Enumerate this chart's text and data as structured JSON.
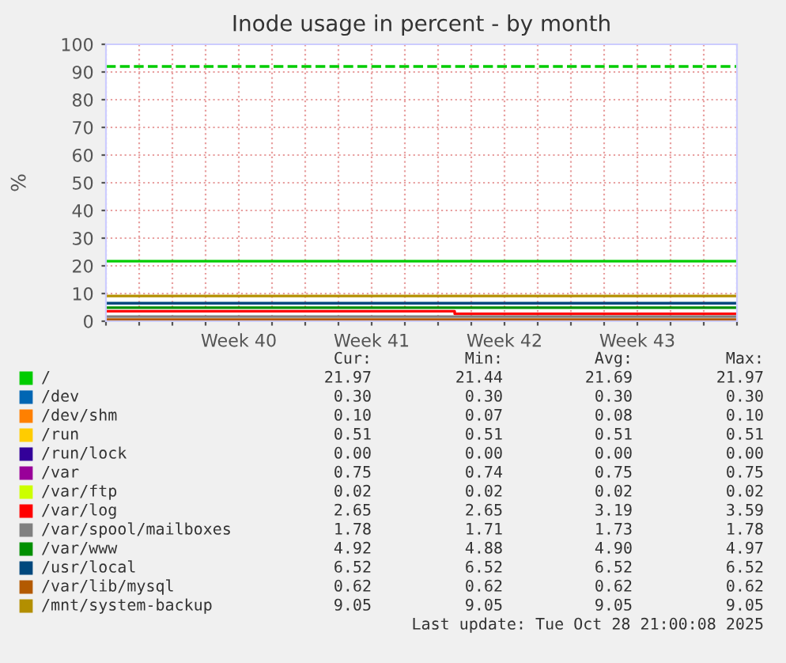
{
  "chart_data": {
    "type": "line",
    "title": "Inode usage in percent - by month",
    "ylabel": "%",
    "categories": [
      null,
      null,
      null,
      null,
      "Week 40",
      null,
      null,
      null,
      "Week 41",
      null,
      null,
      null,
      "Week 42",
      null,
      null,
      null,
      "Week 43",
      null,
      null,
      null
    ],
    "ylim": [
      0,
      100
    ],
    "yticks": [
      0,
      10,
      20,
      30,
      40,
      50,
      60,
      70,
      80,
      90,
      100
    ],
    "grid": true,
    "legend": "bottom",
    "marker": "none",
    "line_style": "solid",
    "ref_lines": [
      {
        "axis": "y",
        "value": 92,
        "color": "#00cc00",
        "line_style": "dashed"
      }
    ],
    "series": [
      {
        "name": "/",
        "color": "#00cc00",
        "values": [
          21.7,
          21.7,
          21.7,
          21.7,
          21.7,
          21.7,
          21.7,
          21.7,
          21.7,
          21.7,
          21.7,
          21.7,
          21.7,
          21.7,
          21.7,
          21.7,
          21.7,
          21.7,
          21.7,
          21.7
        ]
      },
      {
        "name": "/dev",
        "color": "#0066b3",
        "values": [
          null,
          null,
          null,
          null,
          null,
          null,
          null,
          null,
          null,
          null,
          null,
          null,
          null,
          null,
          null,
          null,
          null,
          null,
          null,
          null
        ]
      },
      {
        "name": "/dev/shm",
        "color": "#ff8000",
        "values": [
          null,
          null,
          null,
          null,
          null,
          null,
          null,
          null,
          null,
          null,
          null,
          null,
          null,
          null,
          null,
          null,
          null,
          null,
          null,
          null
        ]
      },
      {
        "name": "/run",
        "color": "#ffcc00",
        "values": [
          null,
          null,
          null,
          null,
          null,
          null,
          null,
          null,
          null,
          null,
          null,
          null,
          null,
          null,
          null,
          null,
          null,
          null,
          null,
          null
        ]
      },
      {
        "name": "/run/lock",
        "color": "#330099",
        "values": [
          null,
          null,
          null,
          null,
          null,
          null,
          null,
          null,
          null,
          null,
          null,
          null,
          null,
          null,
          null,
          null,
          null,
          null,
          null,
          null
        ]
      },
      {
        "name": "/var",
        "color": "#990099",
        "values": [
          null,
          null,
          null,
          null,
          null,
          null,
          null,
          null,
          null,
          null,
          null,
          null,
          null,
          null,
          null,
          null,
          null,
          null,
          null,
          null
        ]
      },
      {
        "name": "/var/ftp",
        "color": "#ccff00",
        "values": [
          null,
          null,
          null,
          null,
          null,
          null,
          null,
          null,
          null,
          null,
          null,
          null,
          null,
          null,
          null,
          null,
          null,
          null,
          null,
          null
        ]
      },
      {
        "name": "/var/log",
        "color": "#ff0000",
        "type": "step",
        "values": [
          3.6,
          3.6,
          3.6,
          3.6,
          3.6,
          3.6,
          3.6,
          3.6,
          3.6,
          3.6,
          3.6,
          2.7,
          2.7,
          2.7,
          2.7,
          2.7,
          2.7,
          2.7,
          2.7,
          2.7
        ]
      },
      {
        "name": "/var/spool/mailboxes",
        "color": "#808080",
        "values": [
          1.7,
          1.7,
          1.7,
          1.7,
          1.7,
          1.7,
          1.7,
          1.7,
          1.7,
          1.7,
          1.7,
          1.7,
          1.7,
          1.7,
          1.7,
          1.7,
          1.7,
          1.7,
          1.7,
          1.7
        ]
      },
      {
        "name": "/var/www",
        "color": "#008f00",
        "values": [
          4.9,
          4.9,
          4.9,
          4.9,
          4.9,
          4.9,
          4.9,
          4.9,
          4.9,
          4.9,
          4.9,
          4.9,
          4.9,
          4.9,
          4.9,
          4.9,
          4.9,
          4.9,
          4.9,
          4.9
        ]
      },
      {
        "name": "/usr/local",
        "color": "#00487d",
        "values": [
          6.5,
          6.5,
          6.5,
          6.5,
          6.5,
          6.5,
          6.5,
          6.5,
          6.5,
          6.5,
          6.5,
          6.5,
          6.5,
          6.5,
          6.5,
          6.5,
          6.5,
          6.5,
          6.5,
          6.5
        ]
      },
      {
        "name": "/var/lib/mysql",
        "color": "#b35a00",
        "values": [
          0.6,
          0.6,
          0.6,
          0.6,
          0.6,
          0.6,
          0.6,
          0.6,
          0.6,
          0.6,
          0.6,
          0.6,
          0.6,
          0.6,
          0.6,
          0.6,
          0.6,
          0.6,
          0.6,
          0.6
        ]
      },
      {
        "name": "/mnt/system-backup",
        "color": "#b38f00",
        "values": [
          9.1,
          9.1,
          9.1,
          9.1,
          9.1,
          9.1,
          9.1,
          9.1,
          9.1,
          9.1,
          9.1,
          9.1,
          9.1,
          9.1,
          9.1,
          9.1,
          9.1,
          9.1,
          9.1,
          9.1
        ]
      }
    ],
    "annotations": [
      "Cur:",
      "Min:",
      "Avg:",
      "Max:",
      "21.97",
      "21.44",
      "21.69",
      "21.97",
      "0.30",
      "0.30",
      "0.30",
      "0.30",
      "0.10",
      "0.07",
      "0.08",
      "0.10",
      "0.51",
      "0.51",
      "0.51",
      "0.51",
      "0.00",
      "0.00",
      "0.00",
      "0.00",
      "0.75",
      "0.74",
      "0.75",
      "0.75",
      "0.02",
      "0.02",
      "0.02",
      "0.02",
      "2.65",
      "2.65",
      "3.19",
      "3.59",
      "1.78",
      "1.71",
      "1.73",
      "1.78",
      "4.92",
      "4.88",
      "4.90",
      "4.97",
      "6.52",
      "6.52",
      "6.52",
      "6.52",
      "0.62",
      "0.62",
      "0.62",
      "0.62",
      "9.05",
      "9.05",
      "9.05",
      "9.05",
      "Last update: Tue Oct 28 21:00:08 2025"
    ]
  }
}
